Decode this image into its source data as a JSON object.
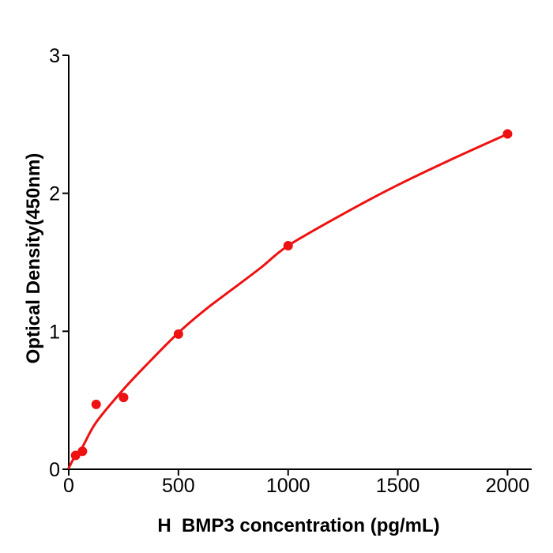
{
  "figure": {
    "background_color": "#ffffff",
    "axis_color": "#000000",
    "accent_color": "#EE1111"
  },
  "chart_data": {
    "type": "scatter",
    "title": "",
    "xlabel": "H  BMP3 concentration (pg/mL)",
    "ylabel": "Optical Density(450nm)",
    "xlim": [
      0,
      2110
    ],
    "ylim": [
      0,
      3
    ],
    "x_ticks": [
      0,
      500,
      1000,
      1500,
      2000
    ],
    "y_ticks": [
      0,
      1,
      2,
      3
    ],
    "grid": false,
    "legend": "none",
    "series": [
      {
        "name": "standard-data-points",
        "type": "scatter",
        "marker": "circle",
        "color": "#EE1111",
        "x": [
          31.25,
          62.5,
          125,
          250,
          500,
          1000,
          2000
        ],
        "y": [
          0.1,
          0.13,
          0.47,
          0.52,
          0.98,
          1.62,
          2.43
        ]
      },
      {
        "name": "fitted-curve",
        "type": "line",
        "color": "#EE1111",
        "x": [
          0,
          31,
          62,
          125,
          250,
          375,
          500,
          625,
          750,
          875,
          1000,
          1250,
          1500,
          1750,
          2000
        ],
        "y": [
          0.01,
          0.1,
          0.16,
          0.34,
          0.58,
          0.79,
          0.99,
          1.16,
          1.31,
          1.46,
          1.62,
          1.85,
          2.06,
          2.25,
          2.43
        ]
      }
    ]
  }
}
